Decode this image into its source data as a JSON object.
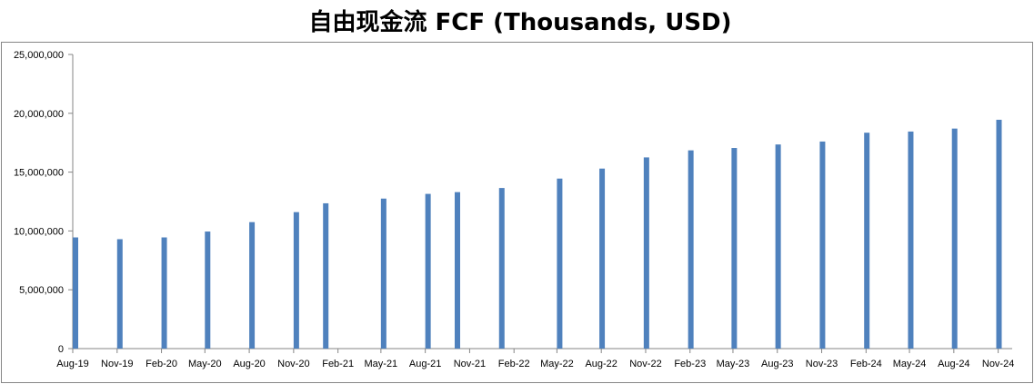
{
  "chart_data": {
    "type": "bar",
    "title": "自由现金流 FCF (Thousands, USD)",
    "xlabel": "",
    "ylabel": "",
    "ylim": [
      0,
      25000000
    ],
    "yticks": [
      "0",
      "5,000,000",
      "10,000,000",
      "15,000,000",
      "20,000,000",
      "25,000,000"
    ],
    "xtick_labels": [
      "Aug-19",
      "Nov-19",
      "Feb-20",
      "May-20",
      "Aug-20",
      "Nov-20",
      "Feb-21",
      "May-21",
      "Aug-21",
      "Nov-21",
      "Feb-22",
      "May-22",
      "Aug-22",
      "Nov-22",
      "Feb-23",
      "May-23",
      "Aug-23",
      "Nov-23",
      "Feb-24",
      "May-24",
      "Aug-24",
      "Nov-24"
    ],
    "x_start": "2019-08-01",
    "x_end": "2024-11-30",
    "bar_color": "#4F81BD",
    "grid": false,
    "legend": "none",
    "points": [
      {
        "date": "2019-08-01",
        "value": 9450000
      },
      {
        "date": "2019-11-01",
        "value": 9300000
      },
      {
        "date": "2020-02-01",
        "value": 9450000
      },
      {
        "date": "2020-05-01",
        "value": 9950000
      },
      {
        "date": "2020-08-01",
        "value": 10750000
      },
      {
        "date": "2020-11-01",
        "value": 11600000
      },
      {
        "date": "2021-01-01",
        "value": 12350000
      },
      {
        "date": "2021-05-01",
        "value": 12750000
      },
      {
        "date": "2021-08-01",
        "value": 13150000
      },
      {
        "date": "2021-10-01",
        "value": 13300000
      },
      {
        "date": "2022-01-01",
        "value": 13650000
      },
      {
        "date": "2022-05-01",
        "value": 14450000
      },
      {
        "date": "2022-07-28",
        "value": 15300000
      },
      {
        "date": "2022-10-28",
        "value": 16250000
      },
      {
        "date": "2023-01-28",
        "value": 16850000
      },
      {
        "date": "2023-04-28",
        "value": 17050000
      },
      {
        "date": "2023-07-28",
        "value": 17350000
      },
      {
        "date": "2023-10-28",
        "value": 17600000
      },
      {
        "date": "2024-01-28",
        "value": 18350000
      },
      {
        "date": "2024-04-28",
        "value": 18450000
      },
      {
        "date": "2024-07-28",
        "value": 18700000
      },
      {
        "date": "2024-10-28",
        "value": 19450000
      }
    ]
  }
}
